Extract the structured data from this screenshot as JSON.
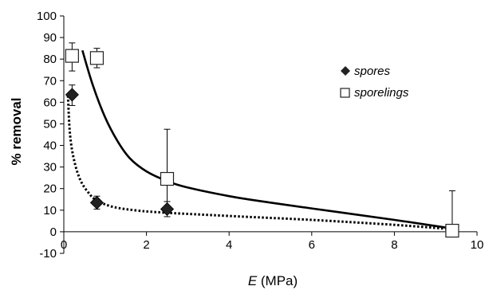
{
  "chart_data": {
    "type": "scatter",
    "ylabel": "% removal",
    "xlabel_var": "E",
    "xlabel_unit": " (MPa)",
    "xlim": [
      0,
      10
    ],
    "ylim": [
      -10,
      100
    ],
    "xticks": [
      0,
      2,
      4,
      6,
      8,
      10
    ],
    "yticks": [
      -10,
      0,
      10,
      20,
      30,
      40,
      50,
      60,
      70,
      80,
      90,
      100
    ],
    "grid": false,
    "legend_position": "top-right",
    "series": [
      {
        "name": "spores",
        "marker": "diamond",
        "color": "#222222",
        "points": [
          {
            "x": 0.2,
            "y": 63.5,
            "err_low": 5.0,
            "err_high": 4.5
          },
          {
            "x": 0.8,
            "y": 13.5,
            "err_low": 3.0,
            "err_high": 3.0
          },
          {
            "x": 2.5,
            "y": 10.5,
            "err_low": 3.5,
            "err_high": 3.5
          },
          {
            "x": 9.4,
            "y": 0.5,
            "err_low": 1.0,
            "err_high": 1.0
          }
        ],
        "fit": {
          "style": "dotted",
          "points": [
            [
              0.1,
              63
            ],
            [
              0.15,
              45
            ],
            [
              0.25,
              33
            ],
            [
              0.4,
              24
            ],
            [
              0.6,
              18
            ],
            [
              0.8,
              14.5
            ],
            [
              1.2,
              11.5
            ],
            [
              1.8,
              9.8
            ],
            [
              2.5,
              8.8
            ],
            [
              4,
              7.3
            ],
            [
              6,
              5.5
            ],
            [
              8,
              3.2
            ],
            [
              9.4,
              1.2
            ]
          ]
        }
      },
      {
        "name": "sporelings",
        "marker": "square",
        "color": "#ffffff",
        "points": [
          {
            "x": 0.2,
            "y": 81.5,
            "err_low": 7.0,
            "err_high": 6.0
          },
          {
            "x": 0.8,
            "y": 80.5,
            "err_low": 4.5,
            "err_high": 4.5
          },
          {
            "x": 2.5,
            "y": 24.5,
            "err_low": 10.5,
            "err_high": 23.0
          },
          {
            "x": 9.4,
            "y": 0.5,
            "err_low": 0,
            "err_high": 18.5
          }
        ],
        "fit": {
          "style": "solid",
          "points": [
            [
              0.45,
              84
            ],
            [
              0.7,
              68
            ],
            [
              1.0,
              53
            ],
            [
              1.3,
              42
            ],
            [
              1.6,
              34
            ],
            [
              2.0,
              28
            ],
            [
              2.5,
              23.5
            ],
            [
              3.0,
              20.5
            ],
            [
              4.0,
              16.5
            ],
            [
              5.0,
              13.5
            ],
            [
              6.5,
              9.5
            ],
            [
              8.0,
              5.5
            ],
            [
              9.4,
              1.5
            ]
          ]
        }
      }
    ]
  }
}
